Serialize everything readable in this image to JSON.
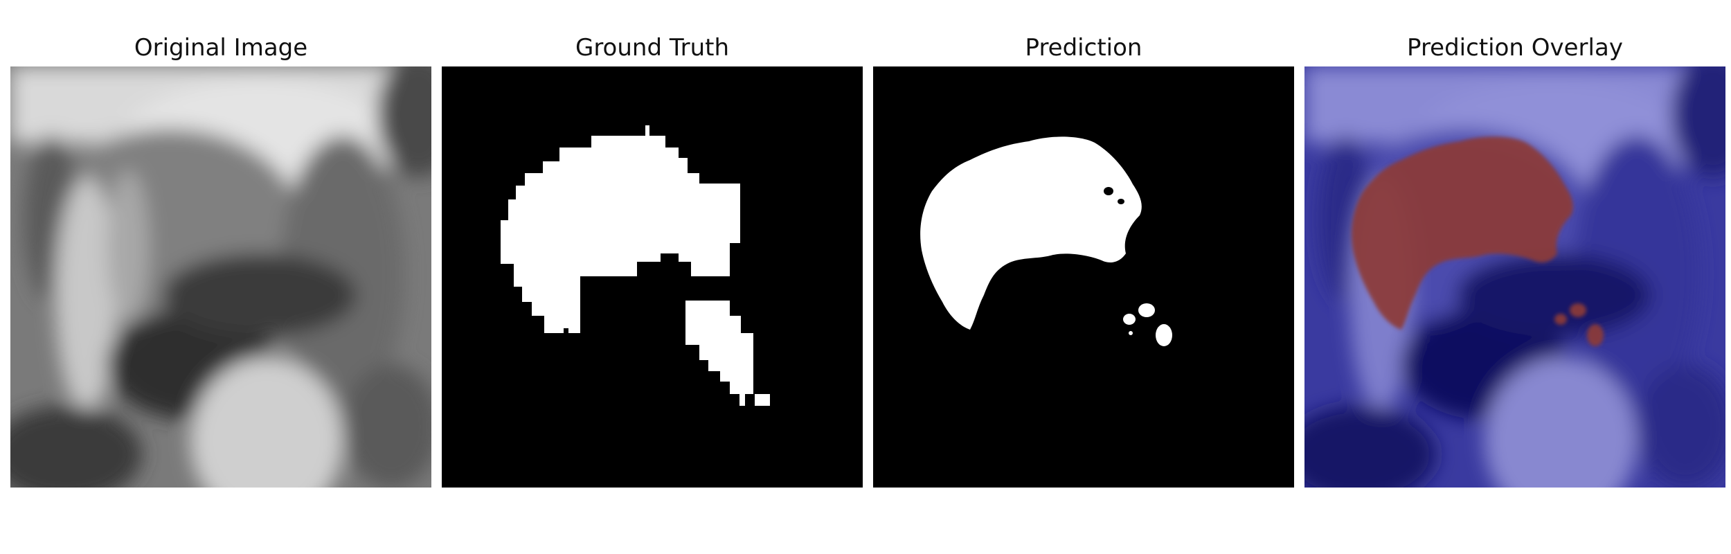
{
  "panels": [
    {
      "title": "Original Image"
    },
    {
      "title": "Ground Truth"
    },
    {
      "title": "Prediction"
    },
    {
      "title": "Prediction Overlay"
    }
  ],
  "colors": {
    "background": "#ffffff",
    "mask_fill": "#ffffff",
    "mask_background": "#000000",
    "overlay_tint": "#1a1a8c",
    "overlay_prediction": "#8c3a36"
  }
}
